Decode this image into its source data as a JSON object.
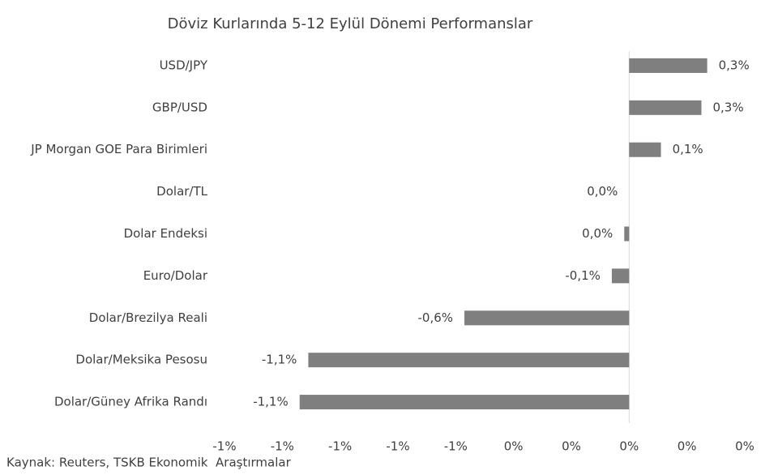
{
  "chart_data": {
    "type": "hbar",
    "title": "Döviz Kurlarında 5-12 Eylül Dönemi Performanslar",
    "categories": [
      "USD/JPY",
      "GBP/USD",
      "JP Morgan GOE Para Birimleri",
      "Dolar/TL",
      "Dolar Endeksi",
      "Euro/Dolar",
      "Dolar/Brezilya Reali",
      "Dolar/Meksika Pesosu",
      "Dolar/Güney Afrika Randı"
    ],
    "values": [
      0.27,
      0.25,
      0.11,
      0,
      -0.017,
      -0.06,
      -0.57,
      -1.11,
      -1.14
    ],
    "value_labels": [
      "0,3%",
      "0,3%",
      "0,1%",
      "0,0%",
      "0,0%",
      "-0,1%",
      "-0,6%",
      "-1,1%",
      "-1,1%"
    ],
    "color": "#7f7f7f",
    "xlim": [
      -1.4,
      0.4
    ],
    "xticks": [
      {
        "value": -1.4,
        "label": "-1%"
      },
      {
        "value": -1.2,
        "label": "-1%"
      },
      {
        "value": -1.0,
        "label": "-1%"
      },
      {
        "value": -0.8,
        "label": "-1%"
      },
      {
        "value": -0.6,
        "label": "-1%"
      },
      {
        "value": -0.4,
        "label": "0%"
      },
      {
        "value": -0.2,
        "label": "0%"
      },
      {
        "value": 0,
        "label": "0%"
      },
      {
        "value": 0.2,
        "label": "0%"
      },
      {
        "value": 0.4,
        "label": "0%"
      }
    ],
    "source": "Kaynak: Reuters, TSKB Ekonomik  Araştırmalar"
  }
}
